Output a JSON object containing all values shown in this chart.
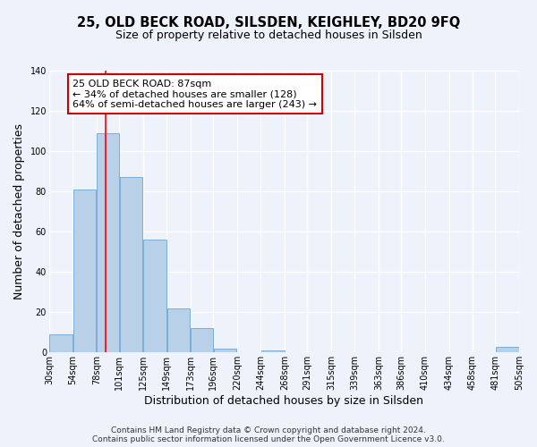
{
  "title": "25, OLD BECK ROAD, SILSDEN, KEIGHLEY, BD20 9FQ",
  "subtitle": "Size of property relative to detached houses in Silsden",
  "xlabel": "Distribution of detached houses by size in Silsden",
  "ylabel": "Number of detached properties",
  "bar_values": [
    9,
    81,
    109,
    87,
    56,
    22,
    12,
    2,
    0,
    1,
    0,
    0,
    0,
    0,
    0,
    0,
    0,
    0,
    0,
    3
  ],
  "bar_left_edges": [
    30,
    54,
    78,
    101,
    125,
    149,
    173,
    196,
    220,
    244,
    268,
    291,
    315,
    339,
    363,
    386,
    410,
    434,
    458,
    481
  ],
  "bar_widths": [
    24,
    24,
    23,
    24,
    24,
    24,
    23,
    24,
    24,
    24,
    23,
    24,
    24,
    24,
    23,
    24,
    24,
    24,
    23,
    24
  ],
  "bar_color": "#b8d0e8",
  "bar_edge_color": "#7aaed6",
  "xtick_labels": [
    "30sqm",
    "54sqm",
    "78sqm",
    "101sqm",
    "125sqm",
    "149sqm",
    "173sqm",
    "196sqm",
    "220sqm",
    "244sqm",
    "268sqm",
    "291sqm",
    "315sqm",
    "339sqm",
    "363sqm",
    "386sqm",
    "410sqm",
    "434sqm",
    "458sqm",
    "481sqm",
    "505sqm"
  ],
  "xtick_positions": [
    30,
    54,
    78,
    101,
    125,
    149,
    173,
    196,
    220,
    244,
    268,
    291,
    315,
    339,
    363,
    386,
    410,
    434,
    458,
    481,
    505
  ],
  "ylim": [
    0,
    140
  ],
  "xlim": [
    30,
    505
  ],
  "ytick_positions": [
    0,
    20,
    40,
    60,
    80,
    100,
    120,
    140
  ],
  "red_line_x": 87,
  "annotation_title": "25 OLD BECK ROAD: 87sqm",
  "annotation_line1": "← 34% of detached houses are smaller (128)",
  "annotation_line2": "64% of semi-detached houses are larger (243) →",
  "annotation_box_color": "#ffffff",
  "annotation_box_edge": "#cc0000",
  "footer_line1": "Contains HM Land Registry data © Crown copyright and database right 2024.",
  "footer_line2": "Contains public sector information licensed under the Open Government Licence v3.0.",
  "bg_color": "#eef3fb",
  "plot_bg_color": "#eef3fb",
  "grid_color": "#ffffff",
  "title_fontsize": 10.5,
  "subtitle_fontsize": 9,
  "axis_label_fontsize": 9,
  "tick_fontsize": 7,
  "footer_fontsize": 6.5,
  "annotation_fontsize": 8
}
